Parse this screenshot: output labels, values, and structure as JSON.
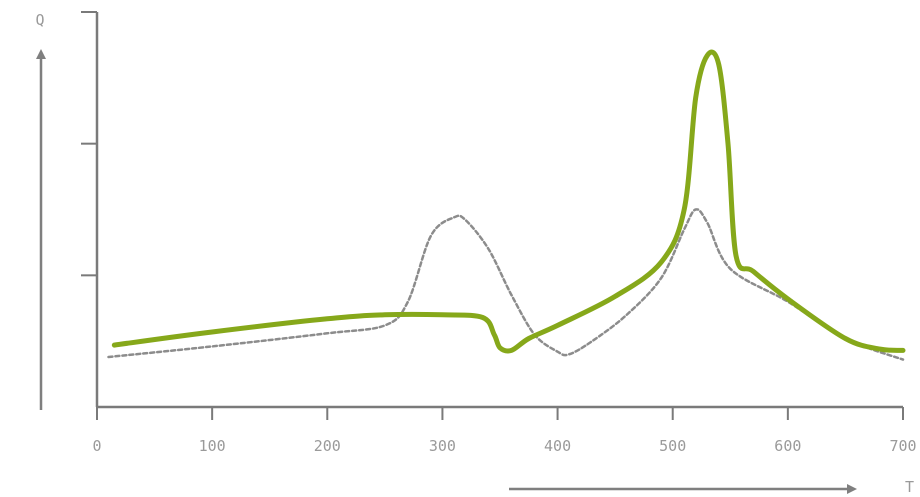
{
  "chart_data": {
    "type": "line",
    "title": "",
    "xlabel": "T",
    "ylabel": "Q",
    "xlim": [
      0,
      700
    ],
    "ylim": [
      0,
      3
    ],
    "x_ticks": [
      0,
      100,
      200,
      300,
      400,
      500,
      600,
      700
    ],
    "x_tick_labels": [
      "0",
      "100",
      "200",
      "300",
      "400",
      "500",
      "600",
      "700"
    ],
    "y_ticks": [
      1,
      2,
      3
    ],
    "grid": false,
    "legend": "none",
    "series": [
      {
        "style": "solid",
        "color": "#86a81a",
        "x": [
          15,
          100,
          200,
          250,
          300,
          335,
          345,
          350,
          360,
          375,
          400,
          450,
          490,
          510,
          520,
          530,
          540,
          548,
          555,
          570,
          600,
          650,
          680,
          700
        ],
        "y": [
          0.47,
          0.57,
          0.67,
          0.7,
          0.7,
          0.68,
          0.55,
          0.45,
          0.43,
          0.52,
          0.62,
          0.84,
          1.1,
          1.5,
          2.35,
          2.67,
          2.6,
          2.0,
          1.15,
          1.03,
          0.82,
          0.52,
          0.44,
          0.43
        ]
      },
      {
        "style": "dashed",
        "color": "#8c8c8c",
        "x": [
          10,
          100,
          200,
          250,
          270,
          290,
          310,
          320,
          340,
          360,
          380,
          400,
          410,
          430,
          460,
          490,
          510,
          520,
          530,
          550,
          600,
          650,
          700
        ],
        "y": [
          0.38,
          0.46,
          0.56,
          0.62,
          0.8,
          1.3,
          1.44,
          1.42,
          1.2,
          0.85,
          0.55,
          0.42,
          0.4,
          0.5,
          0.7,
          0.98,
          1.35,
          1.5,
          1.4,
          1.05,
          0.8,
          0.52,
          0.36
        ]
      }
    ]
  }
}
